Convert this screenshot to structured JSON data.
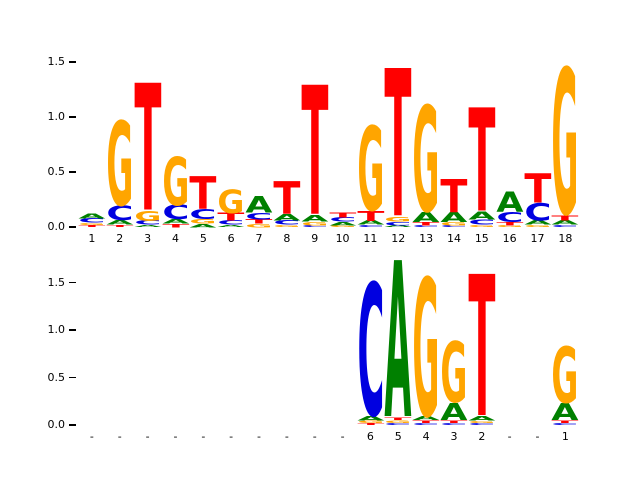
{
  "background_color": "#ffffff",
  "letter_colors": {
    "A": "#008000",
    "C": "#0000e0",
    "G": "#ffa500",
    "T": "#ff0000"
  },
  "chart_data": [
    {
      "type": "sequence_logo",
      "panel": "top",
      "title": "",
      "xlabel": "",
      "ylabel": "",
      "ylim": [
        0,
        1.65
      ],
      "grid": false,
      "ylabel_ticks": [
        "0.0",
        "0.5",
        "1.0",
        "1.5"
      ],
      "xtick_labels": [
        "1",
        "2",
        "3",
        "4",
        "5",
        "6",
        "7",
        "8",
        "9",
        "10",
        "11",
        "12",
        "13",
        "14",
        "15",
        "16",
        "17",
        "18"
      ],
      "columns": [
        [
          [
            "T",
            0.02
          ],
          [
            "G",
            0.02
          ],
          [
            "C",
            0.04
          ],
          [
            "A",
            0.05
          ]
        ],
        [
          [
            "T",
            0.02
          ],
          [
            "A",
            0.04
          ],
          [
            "C",
            0.13
          ],
          [
            "G",
            0.78
          ]
        ],
        [
          [
            "A",
            0.02
          ],
          [
            "C",
            0.04
          ],
          [
            "G",
            0.09
          ],
          [
            "T",
            1.18
          ]
        ],
        [
          [
            "T",
            0.03
          ],
          [
            "A",
            0.04
          ],
          [
            "C",
            0.13
          ],
          [
            "G",
            0.45
          ]
        ],
        [
          [
            "A",
            0.03
          ],
          [
            "G",
            0.04
          ],
          [
            "C",
            0.09
          ],
          [
            "T",
            0.3
          ]
        ],
        [
          [
            "A",
            0.02
          ],
          [
            "C",
            0.04
          ],
          [
            "T",
            0.07
          ],
          [
            "G",
            0.22
          ]
        ],
        [
          [
            "G",
            0.03
          ],
          [
            "T",
            0.04
          ],
          [
            "C",
            0.06
          ],
          [
            "A",
            0.15
          ]
        ],
        [
          [
            "G",
            0.02
          ],
          [
            "C",
            0.04
          ],
          [
            "A",
            0.06
          ],
          [
            "T",
            0.3
          ]
        ],
        [
          [
            "C",
            0.02
          ],
          [
            "G",
            0.03
          ],
          [
            "A",
            0.06
          ],
          [
            "T",
            1.2
          ]
        ],
        [
          [
            "G",
            0.02
          ],
          [
            "A",
            0.03
          ],
          [
            "C",
            0.04
          ],
          [
            "T",
            0.05
          ]
        ],
        [
          [
            "C",
            0.02
          ],
          [
            "A",
            0.04
          ],
          [
            "T",
            0.09
          ],
          [
            "G",
            0.78
          ]
        ],
        [
          [
            "A",
            0.02
          ],
          [
            "C",
            0.03
          ],
          [
            "G",
            0.04
          ],
          [
            "T",
            1.37
          ]
        ],
        [
          [
            "C",
            0.02
          ],
          [
            "T",
            0.03
          ],
          [
            "A",
            0.09
          ],
          [
            "G",
            0.98
          ]
        ],
        [
          [
            "C",
            0.02
          ],
          [
            "G",
            0.03
          ],
          [
            "A",
            0.09
          ],
          [
            "T",
            0.31
          ]
        ],
        [
          [
            "G",
            0.02
          ],
          [
            "C",
            0.05
          ],
          [
            "A",
            0.07
          ],
          [
            "T",
            0.96
          ]
        ],
        [
          [
            "G",
            0.02
          ],
          [
            "T",
            0.03
          ],
          [
            "C",
            0.09
          ],
          [
            "A",
            0.19
          ]
        ],
        [
          [
            "G",
            0.02
          ],
          [
            "A",
            0.04
          ],
          [
            "C",
            0.16
          ],
          [
            "T",
            0.27
          ]
        ],
        [
          [
            "C",
            0.02
          ],
          [
            "A",
            0.04
          ],
          [
            "T",
            0.05
          ],
          [
            "G",
            1.35
          ]
        ]
      ]
    },
    {
      "type": "sequence_logo",
      "panel": "bottom",
      "title": "",
      "xlabel": "",
      "ylabel": "",
      "ylim": [
        0,
        1.85
      ],
      "grid": false,
      "ylabel_ticks": [
        "0.0",
        "0.5",
        "1.0",
        "1.5"
      ],
      "xtick_labels": [
        "-",
        "-",
        "-",
        "-",
        "-",
        "-",
        "-",
        "-",
        "-",
        "-",
        "6",
        "5",
        "4",
        "3",
        "2",
        "-",
        "-",
        "1"
      ],
      "columns": [
        [],
        [],
        [],
        [],
        [],
        [],
        [],
        [],
        [],
        [],
        [
          [
            "T",
            0.02
          ],
          [
            "G",
            0.03
          ],
          [
            "A",
            0.05
          ],
          [
            "C",
            1.42
          ]
        ],
        [
          [
            "C",
            0.02
          ],
          [
            "G",
            0.03
          ],
          [
            "T",
            0.03
          ],
          [
            "A",
            1.68
          ]
        ],
        [
          [
            "C",
            0.02
          ],
          [
            "T",
            0.03
          ],
          [
            "A",
            0.04
          ],
          [
            "G",
            1.48
          ]
        ],
        [
          [
            "C",
            0.02
          ],
          [
            "T",
            0.03
          ],
          [
            "A",
            0.18
          ],
          [
            "G",
            0.65
          ]
        ],
        [
          [
            "C",
            0.02
          ],
          [
            "G",
            0.02
          ],
          [
            "A",
            0.05
          ],
          [
            "T",
            1.52
          ]
        ],
        [],
        [],
        [
          [
            "C",
            0.02
          ],
          [
            "T",
            0.03
          ],
          [
            "A",
            0.18
          ],
          [
            "G",
            0.6
          ]
        ]
      ]
    }
  ]
}
